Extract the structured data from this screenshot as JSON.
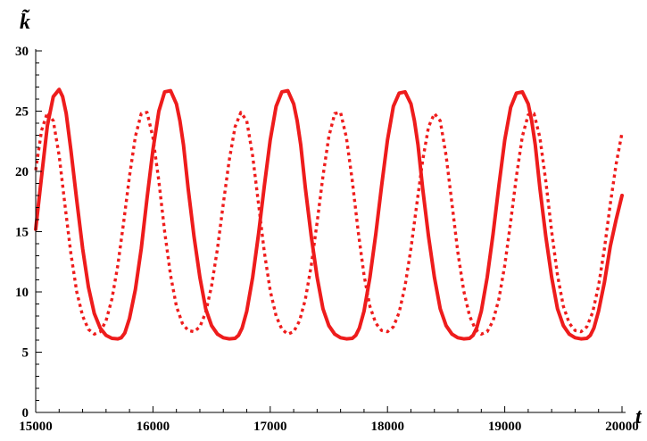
{
  "chart_data": {
    "type": "line",
    "title": "",
    "xlabel": "t",
    "ylabel": "k̃",
    "xlim": [
      15000,
      20000
    ],
    "ylim": [
      0,
      30
    ],
    "x_ticks": [
      "15000",
      "16000",
      "17000",
      "18000",
      "19000",
      "20000"
    ],
    "y_ticks": [
      "0",
      "5",
      "10",
      "15",
      "20",
      "25",
      "30"
    ],
    "grid": false,
    "legend": "none",
    "color": "#ee1c1c",
    "series": [
      {
        "style": "solid",
        "x": [
          15000,
          15050,
          15100,
          15150,
          15200,
          15230,
          15260,
          15300,
          15350,
          15400,
          15450,
          15500,
          15550,
          15600,
          15650,
          15700,
          15730,
          15760,
          15800,
          15850,
          15900,
          15950,
          16000,
          16050,
          16100,
          16150,
          16200,
          16230,
          16260,
          16300,
          16350,
          16400,
          16450,
          16500,
          16550,
          16600,
          16650,
          16700,
          16730,
          16760,
          16800,
          16850,
          16900,
          16950,
          17000,
          17050,
          17100,
          17150,
          17200,
          17230,
          17260,
          17300,
          17350,
          17400,
          17450,
          17500,
          17550,
          17600,
          17650,
          17700,
          17730,
          17760,
          17800,
          17850,
          17900,
          17950,
          18000,
          18050,
          18100,
          18150,
          18200,
          18230,
          18260,
          18300,
          18350,
          18400,
          18450,
          18500,
          18550,
          18600,
          18650,
          18700,
          18730,
          18760,
          18800,
          18850,
          18900,
          18950,
          19000,
          19050,
          19100,
          19150,
          19200,
          19230,
          19260,
          19300,
          19350,
          19400,
          19450,
          19500,
          19550,
          19600,
          19650,
          19700,
          19730,
          19760,
          19800,
          19850,
          19900,
          19950,
          20000
        ],
        "y": [
          15.2,
          19.6,
          23.8,
          26.2,
          26.8,
          26.2,
          24.8,
          21.8,
          17.6,
          13.6,
          10.4,
          8.2,
          7.0,
          6.4,
          6.15,
          6.1,
          6.2,
          6.6,
          7.8,
          10.2,
          13.6,
          17.8,
          21.8,
          25.0,
          26.6,
          26.7,
          25.6,
          24.2,
          22.2,
          18.6,
          14.6,
          11.2,
          8.6,
          7.2,
          6.5,
          6.2,
          6.1,
          6.15,
          6.4,
          7.0,
          8.4,
          11.2,
          14.8,
          18.8,
          22.6,
          25.4,
          26.6,
          26.7,
          25.6,
          24.2,
          22.2,
          18.6,
          14.6,
          11.2,
          8.6,
          7.2,
          6.5,
          6.2,
          6.1,
          6.15,
          6.4,
          7.0,
          8.4,
          11.2,
          14.8,
          18.8,
          22.6,
          25.4,
          26.5,
          26.6,
          25.6,
          24.2,
          22.2,
          18.6,
          14.6,
          11.2,
          8.6,
          7.2,
          6.5,
          6.2,
          6.1,
          6.15,
          6.4,
          7.0,
          8.4,
          11.2,
          14.8,
          18.8,
          22.6,
          25.3,
          26.5,
          26.6,
          25.6,
          24.2,
          22.2,
          18.6,
          14.6,
          11.2,
          8.6,
          7.2,
          6.5,
          6.2,
          6.1,
          6.15,
          6.4,
          7.0,
          8.4,
          10.8,
          13.8,
          16.0,
          18.0
        ]
      },
      {
        "style": "dotted",
        "x": [
          15000,
          15050,
          15100,
          15150,
          15200,
          15250,
          15300,
          15350,
          15400,
          15450,
          15500,
          15550,
          15600,
          15650,
          15700,
          15750,
          15800,
          15850,
          15900,
          15950,
          16000,
          16050,
          16100,
          16150,
          16200,
          16250,
          16300,
          16350,
          16400,
          16450,
          16500,
          16550,
          16600,
          16650,
          16700,
          16750,
          16800,
          16850,
          16900,
          16950,
          17000,
          17050,
          17100,
          17150,
          17200,
          17250,
          17300,
          17350,
          17400,
          17450,
          17500,
          17550,
          17600,
          17650,
          17700,
          17750,
          17800,
          17850,
          17900,
          17950,
          18000,
          18050,
          18100,
          18150,
          18200,
          18250,
          18300,
          18350,
          18400,
          18450,
          18500,
          18550,
          18600,
          18650,
          18700,
          18750,
          18800,
          18850,
          18900,
          18950,
          19000,
          19050,
          19100,
          19150,
          19200,
          19250,
          19300,
          19350,
          19400,
          19450,
          19500,
          19550,
          19600,
          19650,
          19700,
          19750,
          19800,
          19850,
          19900,
          19950,
          20000
        ],
        "y": [
          20.1,
          23.4,
          24.9,
          24.2,
          21.3,
          17.2,
          13.2,
          10.0,
          8.0,
          6.9,
          6.5,
          6.7,
          7.6,
          9.4,
          12.2,
          15.8,
          19.6,
          22.9,
          24.8,
          24.9,
          22.8,
          19.2,
          15.0,
          11.4,
          8.8,
          7.4,
          6.8,
          6.7,
          7.1,
          8.3,
          10.5,
          13.6,
          17.3,
          20.9,
          23.7,
          24.9,
          24.2,
          21.3,
          17.3,
          13.3,
          10.1,
          8.0,
          6.9,
          6.5,
          6.7,
          7.6,
          9.4,
          12.2,
          15.8,
          19.6,
          22.9,
          24.8,
          24.9,
          22.8,
          19.2,
          15.0,
          11.4,
          8.8,
          7.4,
          6.8,
          6.7,
          7.1,
          8.3,
          10.5,
          13.6,
          17.3,
          20.9,
          23.7,
          24.8,
          24.2,
          21.3,
          17.3,
          13.3,
          10.1,
          8.0,
          6.9,
          6.5,
          6.7,
          7.6,
          9.4,
          12.2,
          15.8,
          19.6,
          22.9,
          24.7,
          24.8,
          22.8,
          19.2,
          15.0,
          11.4,
          8.8,
          7.4,
          6.8,
          6.7,
          7.1,
          8.3,
          10.5,
          13.6,
          17.3,
          20.6,
          23.2
        ]
      }
    ]
  }
}
